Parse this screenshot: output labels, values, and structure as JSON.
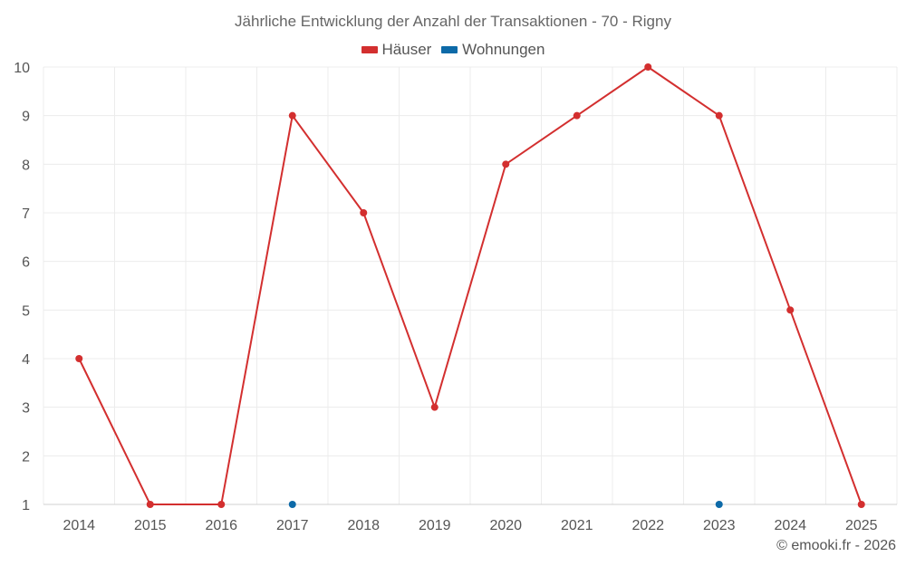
{
  "chart_data": {
    "type": "line",
    "title": "Jährliche Entwicklung der Anzahl der Transaktionen - 70 - Rigny",
    "categories": [
      "2014",
      "2015",
      "2016",
      "2017",
      "2018",
      "2019",
      "2020",
      "2021",
      "2022",
      "2023",
      "2024",
      "2025"
    ],
    "series": [
      {
        "name": "Häuser",
        "color": "#d32f2f",
        "values": [
          4,
          1,
          1,
          9,
          7,
          3,
          8,
          9,
          10,
          9,
          5,
          1
        ]
      },
      {
        "name": "Wohnungen",
        "color": "#0d6aa8",
        "values": [
          null,
          null,
          null,
          1,
          null,
          null,
          null,
          null,
          null,
          1,
          null,
          null
        ]
      }
    ],
    "ylim": [
      1,
      10
    ],
    "yticks": [
      1,
      2,
      3,
      4,
      5,
      6,
      7,
      8,
      9,
      10
    ],
    "grid": true,
    "legend_position": "top-center"
  },
  "credit": "© emooki.fr - 2026"
}
